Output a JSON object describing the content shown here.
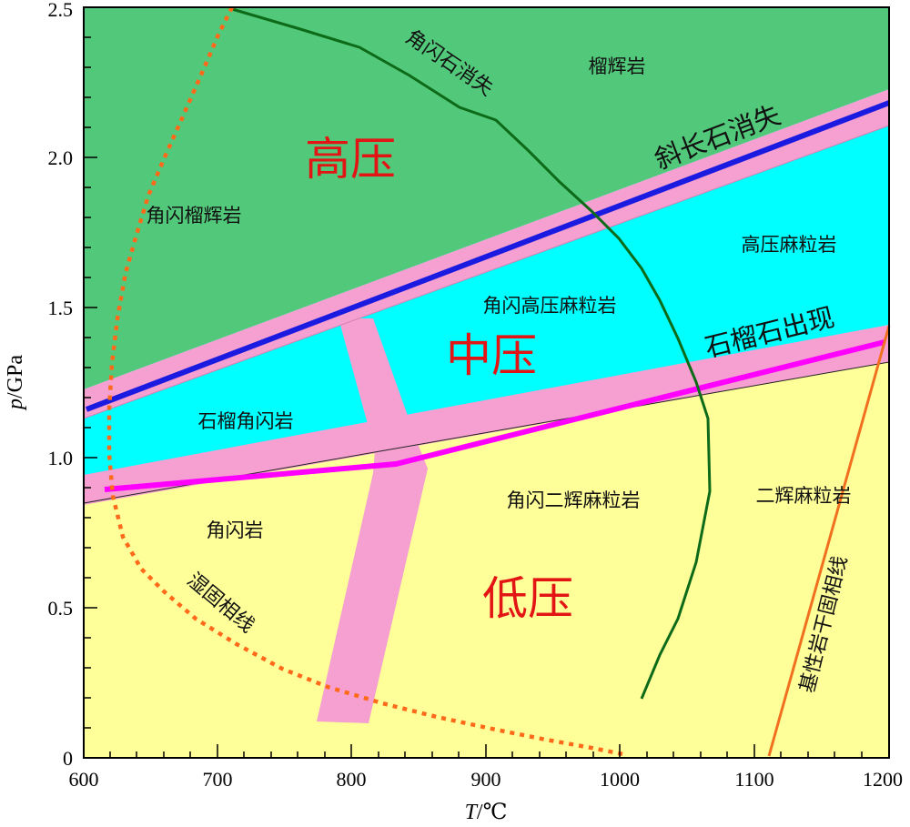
{
  "axes": {
    "x_title_italic": "T",
    "x_title_unit": "/℃",
    "y_title_italic": "p",
    "y_title_unit": "/GPa",
    "x_ticks": [
      "600",
      "700",
      "800",
      "900",
      "1000",
      "1100",
      "1200"
    ],
    "y_ticks": [
      "0",
      "0.5",
      "1.0",
      "1.5",
      "2.0",
      "2.5"
    ]
  },
  "pressure_zones": {
    "high": "高压",
    "medium": "中压",
    "low": "低压"
  },
  "facies": {
    "garnet_granulite": "榴辉岩",
    "hornblende_eclogite": "角闪榴辉岩",
    "high_pressure_granulite": "高压麻粒岩",
    "hornblende_hp_granulite": "角闪高压麻粒岩",
    "garnet_amphibolite": "石榴角闪岩",
    "amphibolite": "角闪岩",
    "hornblende_two_pyroxene_granulite": "角闪二辉麻粒岩",
    "two_pyroxene_granulite": "二辉麻粒岩"
  },
  "lines": {
    "plagioclase_out": "斜长石消失",
    "garnet_in": "石榴石出现",
    "amphibole_out": "角闪石消失",
    "wet_solidus": "湿固相线",
    "basite_dry_solidus": "基性岩干固相线"
  },
  "colors": {
    "high_pressure_field": "#52c97a",
    "medium_pressure_field": "#00ffff",
    "low_pressure_field": "#ffff99",
    "transition_band": "#f5a0d0",
    "plagioclase_line": "#1a1ae0",
    "garnet_line": "#ff00ff",
    "amphibole_curve": "#0d6a18",
    "wet_solidus_curve": "#ff6a1a",
    "dry_solidus_line": "#f07020",
    "zone_label": "#e31414"
  }
}
